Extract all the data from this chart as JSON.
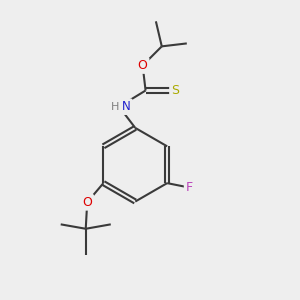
{
  "background_color": "#eeeeee",
  "bond_color": "#3a3a3a",
  "atom_colors": {
    "O": "#dd0000",
    "N": "#2020cc",
    "S": "#aaaa00",
    "F": "#bb44bb",
    "H": "#808080",
    "C": "#3a3a3a"
  },
  "figsize": [
    3.0,
    3.0
  ],
  "dpi": 100
}
